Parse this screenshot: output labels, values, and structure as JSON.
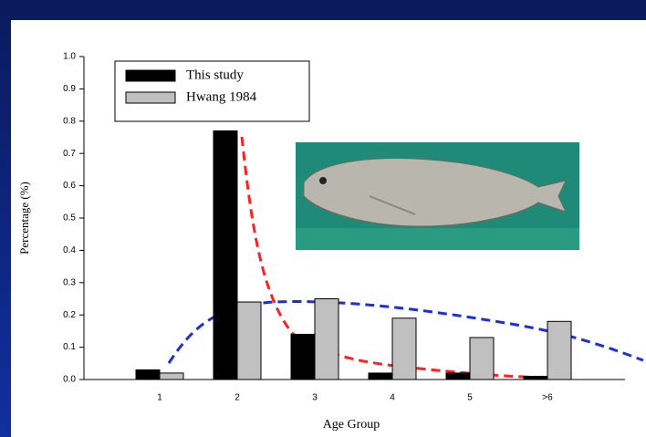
{
  "chart_data": {
    "type": "bar",
    "x_label": "Age Group",
    "y_label": "Percentage (%)",
    "categories": [
      "1",
      "2",
      "3",
      "4",
      "5",
      ">6"
    ],
    "series": [
      {
        "name": "This study",
        "color": "#000000",
        "values": [
          0.03,
          0.77,
          0.14,
          0.02,
          0.02,
          0.01
        ]
      },
      {
        "name": "Hwang 1984",
        "color": "#c0c0c0",
        "values": [
          0.02,
          0.24,
          0.25,
          0.19,
          0.13,
          0.18
        ]
      }
    ],
    "ylim": [
      0,
      1
    ],
    "yticks": [
      {
        "value": 0,
        "label": "0.0"
      },
      0.1,
      0.2,
      0.3,
      0.4,
      0.5,
      0.6,
      0.7,
      0.8,
      0.9,
      {
        "value": 1,
        "label": "1.0"
      }
    ],
    "legend": "top-left"
  }
}
